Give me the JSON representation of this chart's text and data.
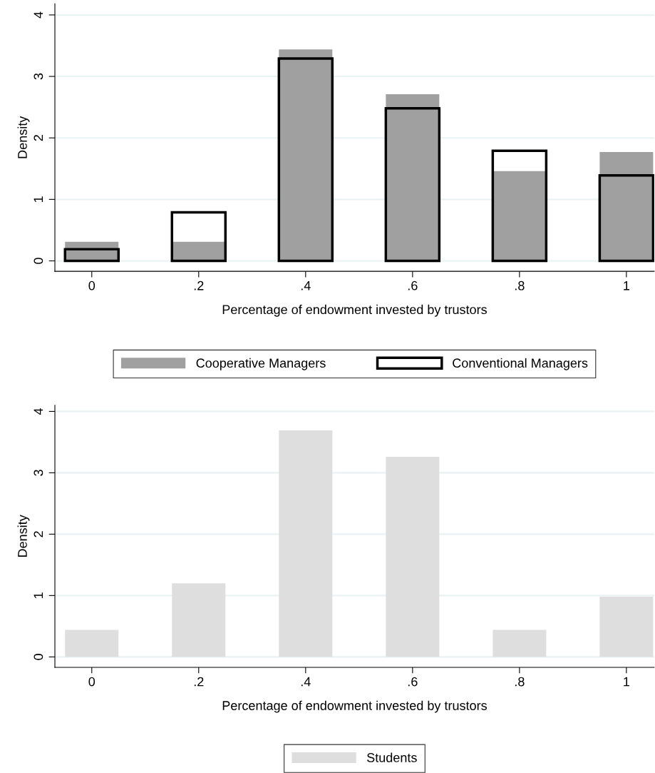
{
  "chart_data": [
    {
      "type": "bar",
      "x": [
        0,
        0.2,
        0.4,
        0.6,
        0.8,
        1
      ],
      "xlabel": "Percentage of endowment invested by trustors",
      "ylabel": "Density",
      "series": [
        {
          "name": "Cooperative Managers",
          "color": "#a0a0a0",
          "values": [
            0.31,
            0.31,
            3.44,
            2.71,
            1.46,
            1.77
          ]
        },
        {
          "name": "Conventional Managers",
          "color": "#000000",
          "values": [
            0.19,
            0.79,
            3.29,
            2.48,
            1.79,
            1.39
          ]
        }
      ],
      "xlim": [
        -0.069,
        1.052
      ],
      "ylim": [
        -0.17,
        4.18
      ],
      "xticks": [
        0,
        {
          "value": 0.2,
          "label": ".2"
        },
        {
          "value": 0.4,
          "label": ".4"
        },
        {
          "value": 0.6,
          "label": ".6"
        },
        {
          "value": 0.8,
          "label": ".8"
        },
        1
      ],
      "yticks": [
        0,
        1,
        2,
        3,
        4
      ],
      "grid": "y",
      "legend": "bottom"
    },
    {
      "type": "bar",
      "x": [
        0,
        0.2,
        0.4,
        0.6,
        0.8,
        1
      ],
      "xlabel": "Percentage of endowment invested by trustors",
      "ylabel": "Density",
      "series": [
        {
          "name": "Students",
          "color": "#dedede",
          "values": [
            0.44,
            1.2,
            3.69,
            3.26,
            0.44,
            0.98
          ]
        }
      ],
      "xlim": [
        -0.069,
        1.052
      ],
      "ylim": [
        -0.17,
        4.1
      ],
      "xticks": [
        0,
        {
          "value": 0.2,
          "label": ".2"
        },
        {
          "value": 0.4,
          "label": ".4"
        },
        {
          "value": 0.6,
          "label": ".6"
        },
        {
          "value": 0.8,
          "label": ".8"
        },
        1
      ],
      "yticks": [
        0,
        1,
        2,
        3,
        4
      ],
      "grid": "y",
      "legend": "bottom"
    }
  ]
}
